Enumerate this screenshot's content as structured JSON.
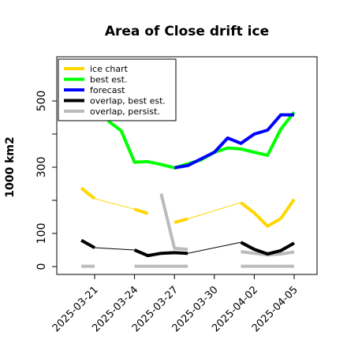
{
  "chart_data": {
    "type": "line",
    "title": "Area of Close drift ice",
    "xlabel": "",
    "ylabel": "1000 km2",
    "ylim": [
      0,
      500
    ],
    "xlim": [
      "2025-03-18",
      "2025-04-06"
    ],
    "yticks": [
      0,
      100,
      300,
      500
    ],
    "yticks_minor": [
      200,
      400
    ],
    "xticks": [
      "2025-03-21",
      "2025-03-24",
      "2025-03-27",
      "2025-03-30",
      "2025-04-02",
      "2025-04-05"
    ],
    "xtick_colors": [
      "#000000",
      "#000000",
      "#228b22",
      "#000000",
      "#000000",
      "#000000"
    ],
    "legend_position": "top-left",
    "legend": [
      {
        "label": "ice chart",
        "color": "#ffd700"
      },
      {
        "label": "best est.",
        "color": "#00ff00"
      },
      {
        "label": "forecast",
        "color": "#0000ff"
      },
      {
        "label": "overlap, best est.",
        "color": "#000000"
      },
      {
        "label": "overlap, persist.",
        "color": "#bbbbbb"
      }
    ],
    "series": [
      {
        "name": "ice chart",
        "color": "#ffd700",
        "segments": [
          {
            "x": [
              "2025-03-20",
              "2025-03-21"
            ],
            "y": [
              237,
              205
            ]
          },
          {
            "x": [
              "2025-03-24",
              "2025-03-25"
            ],
            "y": [
              173,
              160
            ]
          },
          {
            "x": [
              "2025-03-27",
              "2025-03-28"
            ],
            "y": [
              133,
              144
            ]
          },
          {
            "x": [
              "2025-04-01",
              "2025-04-02",
              "2025-04-03",
              "2025-04-04"
            ],
            "y": [
              193,
              162,
              122,
              145
            ]
          },
          {
            "x": [
              "2025-04-04",
              "2025-04-05"
            ],
            "y": [
              145,
              203
            ]
          }
        ],
        "thin_links": [
          {
            "x": [
              "2025-03-21",
              "2025-03-24"
            ],
            "y": [
              205,
              173
            ]
          },
          {
            "x": [
              "2025-03-28",
              "2025-04-01"
            ],
            "y": [
              144,
              193
            ]
          }
        ]
      },
      {
        "name": "best est.",
        "color": "#00ff00",
        "x": [
          "2025-03-22",
          "2025-03-23",
          "2025-03-24",
          "2025-03-25",
          "2025-03-26",
          "2025-03-27",
          "2025-03-28",
          "2025-03-29",
          "2025-03-30",
          "2025-03-31",
          "2025-04-01",
          "2025-04-02",
          "2025-04-03",
          "2025-04-04",
          "2025-04-05"
        ],
        "y": [
          440,
          410,
          315,
          317,
          308,
          298,
          310,
          322,
          345,
          358,
          355,
          345,
          336,
          415,
          466
        ]
      },
      {
        "name": "forecast",
        "color": "#0000ff",
        "x": [
          "2025-03-27",
          "2025-03-28",
          "2025-03-29",
          "2025-03-30",
          "2025-03-31",
          "2025-04-01",
          "2025-04-02",
          "2025-04-03",
          "2025-04-04",
          "2025-04-05"
        ],
        "y": [
          298,
          305,
          325,
          345,
          388,
          372,
          400,
          412,
          458,
          458
        ]
      },
      {
        "name": "overlap, best est.",
        "color": "#000000",
        "segments": [
          {
            "x": [
              "2025-03-20",
              "2025-03-21"
            ],
            "y": [
              79,
              57
            ]
          },
          {
            "x": [
              "2025-03-24",
              "2025-03-25",
              "2025-03-26",
              "2025-03-27",
              "2025-03-28"
            ],
            "y": [
              50,
              33,
              40,
              42,
              40
            ]
          },
          {
            "x": [
              "2025-04-01",
              "2025-04-02",
              "2025-04-03",
              "2025-04-04",
              "2025-04-05"
            ],
            "y": [
              73,
              52,
              38,
              48,
              71
            ]
          }
        ],
        "thin_links": [
          {
            "x": [
              "2025-03-21",
              "2025-03-24"
            ],
            "y": [
              57,
              50
            ]
          },
          {
            "x": [
              "2025-03-28",
              "2025-04-01"
            ],
            "y": [
              40,
              73
            ]
          }
        ]
      },
      {
        "name": "overlap, persist.",
        "color": "#bbbbbb",
        "segments": [
          {
            "x": [
              "2025-03-26",
              "2025-03-27",
              "2025-03-28"
            ],
            "y": [
              220,
              55,
              52
            ]
          },
          {
            "x": [
              "2025-04-01",
              "2025-04-02",
              "2025-04-03",
              "2025-04-04",
              "2025-04-05"
            ],
            "y": [
              45,
              40,
              35,
              38,
              44
            ]
          },
          {
            "x": [
              "2025-03-20",
              "2025-03-21"
            ],
            "y": [
              1,
              1
            ]
          },
          {
            "x": [
              "2025-03-24",
              "2025-03-28"
            ],
            "y": [
              1,
              1
            ]
          },
          {
            "x": [
              "2025-04-01",
              "2025-04-05"
            ],
            "y": [
              1,
              1
            ]
          }
        ]
      }
    ]
  }
}
